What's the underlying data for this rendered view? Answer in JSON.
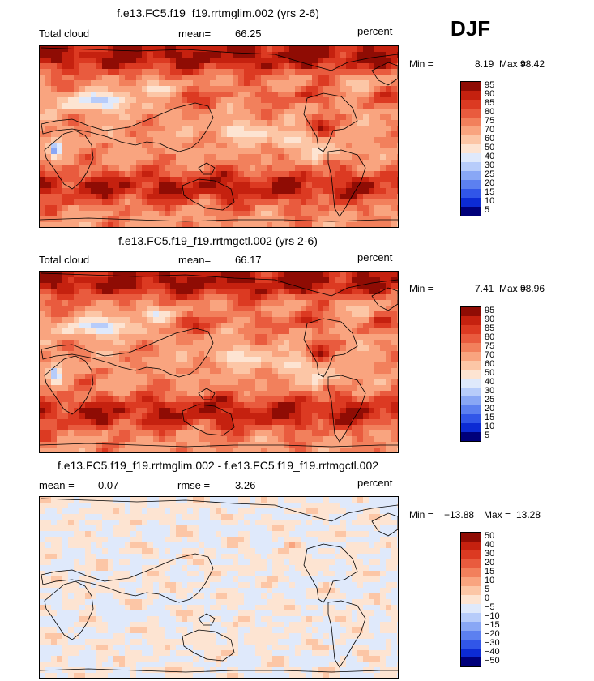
{
  "season": "DJF",
  "units": "percent",
  "palette_abs": [
    "#00007a",
    "#0c2bd4",
    "#3156e8",
    "#5c80f0",
    "#89a7f5",
    "#b7ccfa",
    "#dfe9fb",
    "#fde4d2",
    "#fcc6a6",
    "#f9a47f",
    "#f2805c",
    "#e95b3e",
    "#dc3a22",
    "#c5210f",
    "#8f0c04"
  ],
  "palette_diff": [
    "#00007a",
    "#0c2bd4",
    "#3156e8",
    "#5c80f0",
    "#89a7f5",
    "#b7ccfa",
    "#dfe9fb",
    "#fde4d2",
    "#fcc6a6",
    "#f9a47f",
    "#f2805c",
    "#e95b3e",
    "#dc3a22",
    "#c5210f",
    "#8f0c04"
  ],
  "colorbar_abs": {
    "levels": [
      "95",
      "90",
      "85",
      "80",
      "75",
      "70",
      "60",
      "50",
      "40",
      "30",
      "25",
      "20",
      "15",
      "10",
      "5"
    ]
  },
  "colorbar_diff": {
    "levels": [
      "50",
      "40",
      "30",
      "20",
      "15",
      "10",
      "5",
      "0",
      "−5",
      "−10",
      "−15",
      "−20",
      "−30",
      "−40",
      "−50"
    ]
  },
  "chart_data": [
    {
      "type": "heatmap",
      "title": "f.e13.FC5.f19_f19.rrtmglim.002 (yrs 2-6)",
      "variable": "Total cloud",
      "mean_label": "mean=",
      "mean": "66.25",
      "units": "percent",
      "min_label": "Min =",
      "min": "8.19",
      "max_label": "Max =",
      "max": "98.42"
    },
    {
      "type": "heatmap",
      "title": "f.e13.FC5.f19_f19.rrtmgctl.002 (yrs 2-6)",
      "variable": "Total cloud",
      "mean_label": "mean=",
      "mean": "66.17",
      "units": "percent",
      "min_label": "Min =",
      "min": "7.41",
      "max_label": "Max =",
      "max": "98.96"
    },
    {
      "type": "heatmap",
      "title": "f.e13.FC5.f19_f19.rrtmglim.002 - f.e13.FC5.f19_f19.rrtmgctl.002",
      "mean_label": "mean =",
      "mean": "0.07",
      "rmse_label": "rmse =",
      "rmse": "3.26",
      "units": "percent",
      "min_label": "Min =",
      "min": "−13.88",
      "max_label": "Max =",
      "max": "13.28"
    }
  ]
}
